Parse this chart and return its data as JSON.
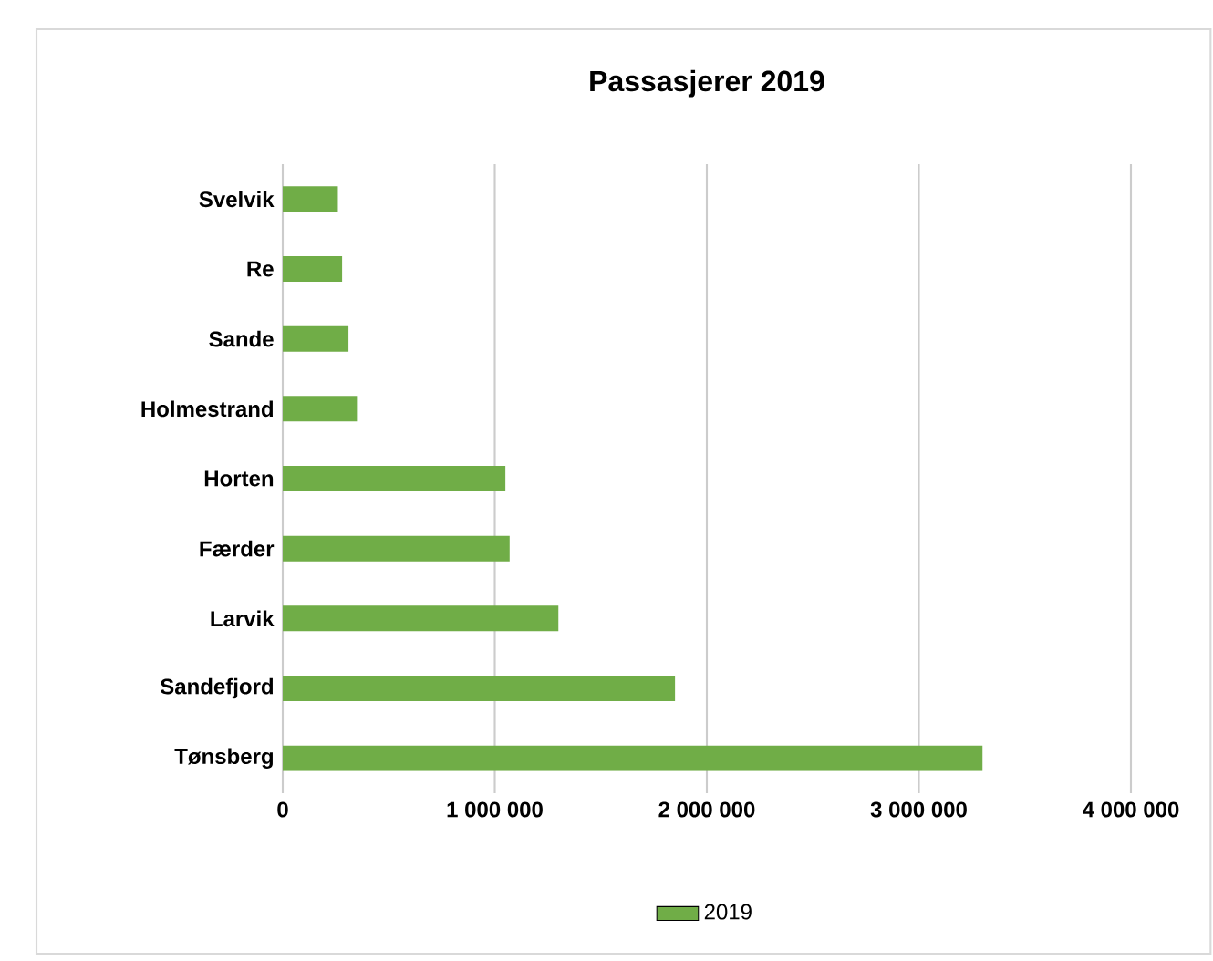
{
  "chart_data": {
    "type": "bar",
    "orientation": "horizontal",
    "title": "Passasjerer 2019",
    "categories": [
      "Svelvik",
      "Re",
      "Sande",
      "Holmestrand",
      "Horten",
      "Færder",
      "Larvik",
      "Sandefjord",
      "Tønsberg"
    ],
    "series": [
      {
        "name": "2019",
        "color": "#70ad47",
        "values": [
          260000,
          280000,
          310000,
          350000,
          1050000,
          1070000,
          1300000,
          1850000,
          3300000
        ]
      }
    ],
    "xlim": [
      0,
      4000000
    ],
    "xticks": [
      0,
      {
        "value": 1000000,
        "label": "1 000 000"
      },
      {
        "value": 2000000,
        "label": "2 000 000"
      },
      {
        "value": 3000000,
        "label": "3 000 000"
      },
      {
        "value": 4000000,
        "label": "4 000 000"
      }
    ],
    "grid": "x",
    "legend": "bottom"
  }
}
